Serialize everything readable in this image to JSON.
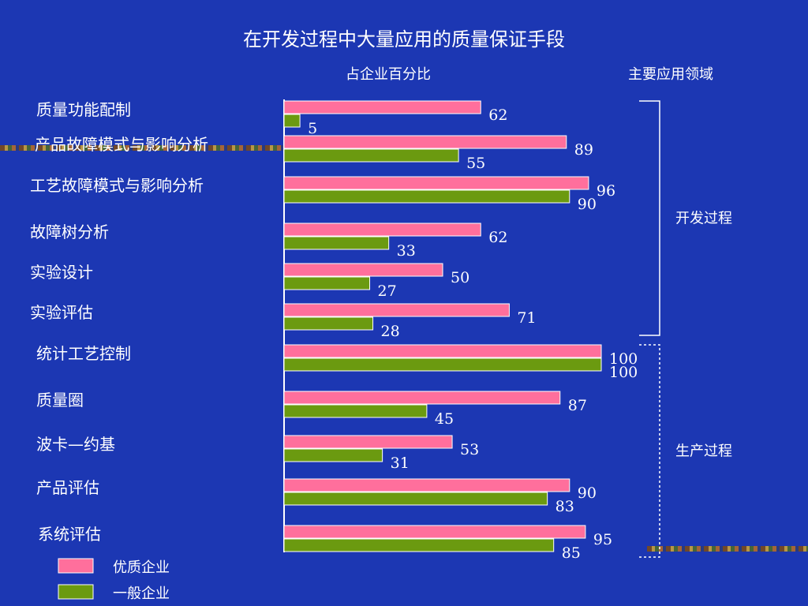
{
  "slide": {
    "title": "在开发过程中大量应用的质量保证手段",
    "subhead_left": "占企业百分比",
    "subhead_right": "主要应用领域"
  },
  "chart_data": {
    "type": "bar",
    "orientation": "horizontal",
    "title": "在开发过程中大量应用的质量保证手段",
    "xlabel": "占企业百分比",
    "ylabel": "",
    "xlim": [
      0,
      100
    ],
    "categories": [
      "质量功能配制",
      "产品故障模式与影响分析",
      "工艺故障模式与影响分析",
      "故障树分析",
      "实验设计",
      "实验评估",
      "统计工艺控制",
      "质量圈",
      "波卡—约基",
      "产品评估",
      "系统评估"
    ],
    "series": [
      {
        "name": "优质企业",
        "color": "#ff6f9c",
        "values": [
          62,
          89,
          96,
          62,
          50,
          71,
          100,
          87,
          53,
          90,
          95
        ]
      },
      {
        "name": "一般企业",
        "color": "#6b9a10",
        "values": [
          5,
          55,
          90,
          33,
          27,
          28,
          100,
          45,
          31,
          83,
          85
        ]
      }
    ],
    "groups": [
      {
        "label": "开发过程",
        "from": 0,
        "to": 5,
        "style": "solid"
      },
      {
        "label": "生产过程",
        "from": 6,
        "to": 10,
        "style": "dashed"
      }
    ],
    "legend": "bottom-left",
    "grid": false
  }
}
